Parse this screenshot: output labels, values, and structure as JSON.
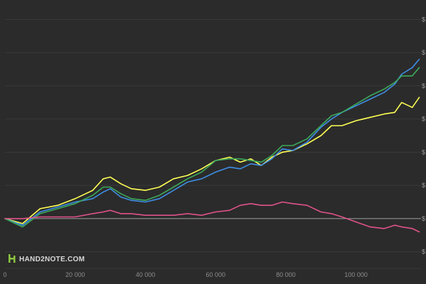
{
  "logo": {
    "text": "HAND2NOTE.COM"
  },
  "chart_data": {
    "type": "line",
    "title": "",
    "xlabel": "",
    "ylabel": "",
    "xlim": [
      0,
      118500
    ],
    "ylim": [
      -3,
      13
    ],
    "x_ticks": [
      {
        "value": 0,
        "label": "0"
      },
      {
        "value": 20000,
        "label": "20 000"
      },
      {
        "value": 40000,
        "label": "40 000"
      },
      {
        "value": 60000,
        "label": "60 000"
      },
      {
        "value": 80000,
        "label": "80 000"
      },
      {
        "value": 100000,
        "label": "100 000"
      }
    ],
    "y_ticks": [
      {
        "value": -2,
        "label": "$"
      },
      {
        "value": 0,
        "label": "$"
      },
      {
        "value": 2,
        "label": "$"
      },
      {
        "value": 4,
        "label": "$"
      },
      {
        "value": 6,
        "label": "$"
      },
      {
        "value": 8,
        "label": "$"
      },
      {
        "value": 10,
        "label": "$"
      },
      {
        "value": 12,
        "label": "$"
      }
    ],
    "grid": true,
    "zero_line": true,
    "legend": "none",
    "series": [
      {
        "color": "#ffff55",
        "points": [
          [
            0,
            0
          ],
          [
            5000,
            -0.3
          ],
          [
            10000,
            0.6
          ],
          [
            15000,
            0.8
          ],
          [
            20000,
            1.2
          ],
          [
            25000,
            1.7
          ],
          [
            28000,
            2.4
          ],
          [
            30000,
            2.5
          ],
          [
            33000,
            2.1
          ],
          [
            36000,
            1.8
          ],
          [
            40000,
            1.7
          ],
          [
            44000,
            1.9
          ],
          [
            48000,
            2.4
          ],
          [
            52000,
            2.6
          ],
          [
            56000,
            3.0
          ],
          [
            60000,
            3.5
          ],
          [
            64000,
            3.7
          ],
          [
            67000,
            3.4
          ],
          [
            70000,
            3.6
          ],
          [
            73000,
            3.2
          ],
          [
            76000,
            3.7
          ],
          [
            79000,
            4.0
          ],
          [
            82000,
            4.1
          ],
          [
            86000,
            4.5
          ],
          [
            90000,
            5.0
          ],
          [
            93000,
            5.6
          ],
          [
            96000,
            5.6
          ],
          [
            100000,
            5.9
          ],
          [
            104000,
            6.1
          ],
          [
            108000,
            6.3
          ],
          [
            111000,
            6.4
          ],
          [
            113000,
            7.0
          ],
          [
            116000,
            6.7
          ],
          [
            118000,
            7.3
          ]
        ]
      },
      {
        "color": "#3f8ee6",
        "points": [
          [
            0,
            0
          ],
          [
            5000,
            -0.4
          ],
          [
            10000,
            0.4
          ],
          [
            15000,
            0.7
          ],
          [
            20000,
            1.0
          ],
          [
            25000,
            1.2
          ],
          [
            28000,
            1.6
          ],
          [
            30000,
            1.8
          ],
          [
            33000,
            1.3
          ],
          [
            36000,
            1.1
          ],
          [
            40000,
            1.0
          ],
          [
            44000,
            1.2
          ],
          [
            48000,
            1.7
          ],
          [
            52000,
            2.2
          ],
          [
            56000,
            2.4
          ],
          [
            60000,
            2.8
          ],
          [
            64000,
            3.1
          ],
          [
            67000,
            3.0
          ],
          [
            70000,
            3.3
          ],
          [
            73000,
            3.2
          ],
          [
            76000,
            3.6
          ],
          [
            79000,
            4.2
          ],
          [
            82000,
            4.1
          ],
          [
            86000,
            4.6
          ],
          [
            90000,
            5.5
          ],
          [
            93000,
            6.0
          ],
          [
            96000,
            6.4
          ],
          [
            100000,
            6.8
          ],
          [
            104000,
            7.2
          ],
          [
            108000,
            7.6
          ],
          [
            111000,
            8.1
          ],
          [
            113000,
            8.7
          ],
          [
            116000,
            9.1
          ],
          [
            118000,
            9.6
          ]
        ]
      },
      {
        "color": "#3daa5b",
        "points": [
          [
            0,
            0
          ],
          [
            5000,
            -0.5
          ],
          [
            10000,
            0.3
          ],
          [
            15000,
            0.6
          ],
          [
            20000,
            0.9
          ],
          [
            25000,
            1.4
          ],
          [
            28000,
            1.9
          ],
          [
            30000,
            1.9
          ],
          [
            33000,
            1.5
          ],
          [
            36000,
            1.2
          ],
          [
            40000,
            1.1
          ],
          [
            44000,
            1.4
          ],
          [
            48000,
            1.9
          ],
          [
            52000,
            2.4
          ],
          [
            56000,
            2.8
          ],
          [
            60000,
            3.5
          ],
          [
            64000,
            3.6
          ],
          [
            67000,
            3.6
          ],
          [
            70000,
            3.5
          ],
          [
            73000,
            3.4
          ],
          [
            76000,
            3.8
          ],
          [
            79000,
            4.4
          ],
          [
            82000,
            4.4
          ],
          [
            86000,
            4.8
          ],
          [
            90000,
            5.6
          ],
          [
            93000,
            6.2
          ],
          [
            96000,
            6.4
          ],
          [
            100000,
            6.9
          ],
          [
            104000,
            7.4
          ],
          [
            108000,
            7.8
          ],
          [
            111000,
            8.2
          ],
          [
            113000,
            8.6
          ],
          [
            116000,
            8.6
          ],
          [
            118000,
            9.1
          ]
        ]
      },
      {
        "color": "#e05288",
        "points": [
          [
            0,
            0
          ],
          [
            5000,
            0.0
          ],
          [
            10000,
            0.1
          ],
          [
            15000,
            0.1
          ],
          [
            20000,
            0.1
          ],
          [
            25000,
            0.3
          ],
          [
            28000,
            0.4
          ],
          [
            30000,
            0.5
          ],
          [
            33000,
            0.3
          ],
          [
            36000,
            0.3
          ],
          [
            40000,
            0.2
          ],
          [
            44000,
            0.2
          ],
          [
            48000,
            0.2
          ],
          [
            52000,
            0.3
          ],
          [
            56000,
            0.2
          ],
          [
            60000,
            0.4
          ],
          [
            64000,
            0.5
          ],
          [
            67000,
            0.8
          ],
          [
            70000,
            0.9
          ],
          [
            73000,
            0.8
          ],
          [
            76000,
            0.8
          ],
          [
            79000,
            1.0
          ],
          [
            82000,
            0.9
          ],
          [
            86000,
            0.8
          ],
          [
            90000,
            0.4
          ],
          [
            93000,
            0.3
          ],
          [
            96000,
            0.1
          ],
          [
            100000,
            -0.2
          ],
          [
            104000,
            -0.5
          ],
          [
            108000,
            -0.6
          ],
          [
            111000,
            -0.4
          ],
          [
            113000,
            -0.5
          ],
          [
            116000,
            -0.6
          ],
          [
            118000,
            -0.8
          ]
        ]
      }
    ]
  }
}
